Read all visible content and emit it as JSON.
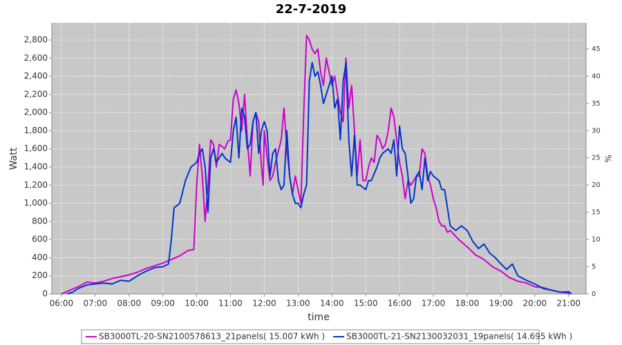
{
  "chart_data": {
    "type": "line",
    "title": "22-7-2019",
    "x_label": "time",
    "y_label": "Watt",
    "y2_label": "%",
    "xlim": [
      "05:43",
      "21:31"
    ],
    "xticks": [
      "06:00",
      "07:00",
      "08:00",
      "09:00",
      "10:00",
      "11:00",
      "12:00",
      "13:00",
      "14:00",
      "15:00",
      "16:00",
      "17:00",
      "18:00",
      "19:00",
      "20:00",
      "21:00"
    ],
    "ylim": [
      0,
      2990
    ],
    "yticks": [
      0,
      200,
      400,
      600,
      800,
      {
        "value": 1000,
        "label": "1,000"
      },
      {
        "value": 1200,
        "label": "1,200"
      },
      {
        "value": 1400,
        "label": "1,400"
      },
      {
        "value": 1600,
        "label": "1,600"
      },
      {
        "value": 1800,
        "label": "1,800"
      },
      {
        "value": 2000,
        "label": "2,000"
      },
      {
        "value": 2200,
        "label": "2,200"
      },
      {
        "value": 2400,
        "label": "2,400"
      },
      {
        "value": 2600,
        "label": "2,600"
      },
      {
        "value": 2800,
        "label": "2,800"
      }
    ],
    "y2lim": [
      0,
      49.8
    ],
    "y2ticks": [
      0,
      5,
      10,
      15,
      20,
      25,
      30,
      35,
      40,
      45
    ],
    "grid": true,
    "legend": "bottom",
    "series": [
      {
        "name": "SB3000TL-20-SN2100578613_21panels( 15.007 kWh )",
        "color": "#cc00cc",
        "x": [
          "06:00",
          "06:15",
          "06:30",
          "06:45",
          "07:00",
          "07:15",
          "07:30",
          "07:45",
          "08:00",
          "08:15",
          "08:30",
          "08:45",
          "09:00",
          "09:15",
          "09:30",
          "09:45",
          "09:55",
          "10:00",
          "10:05",
          "10:10",
          "10:15",
          "10:20",
          "10:25",
          "10:30",
          "10:35",
          "10:40",
          "10:50",
          "10:55",
          "11:00",
          "11:05",
          "11:10",
          "11:15",
          "11:20",
          "11:25",
          "11:30",
          "11:35",
          "11:40",
          "11:45",
          "11:50",
          "11:55",
          "11:58",
          "12:00",
          "12:05",
          "12:10",
          "12:15",
          "12:20",
          "12:30",
          "12:35",
          "12:40",
          "12:45",
          "12:50",
          "12:55",
          "13:00",
          "13:05",
          "13:10",
          "13:15",
          "13:20",
          "13:25",
          "13:30",
          "13:35",
          "13:40",
          "13:45",
          "13:50",
          "13:55",
          "14:00",
          "14:05",
          "14:10",
          "14:15",
          "14:20",
          "14:25",
          "14:30",
          "14:35",
          "14:40",
          "14:45",
          "14:50",
          "14:55",
          "15:00",
          "15:05",
          "15:10",
          "15:15",
          "15:20",
          "15:25",
          "15:30",
          "15:35",
          "15:40",
          "15:45",
          "15:50",
          "15:55",
          "16:00",
          "16:05",
          "16:10",
          "16:15",
          "16:20",
          "16:25",
          "16:30",
          "16:35",
          "16:40",
          "16:45",
          "16:50",
          "16:55",
          "17:00",
          "17:05",
          "17:10",
          "17:15",
          "17:20",
          "17:25",
          "17:30",
          "17:45",
          "18:00",
          "18:15",
          "18:30",
          "18:45",
          "19:00",
          "19:15",
          "19:30",
          "19:45",
          "20:00",
          "20:15",
          "20:30",
          "20:45",
          "21:00",
          "21:05"
        ],
        "values": [
          0,
          40,
          80,
          130,
          120,
          140,
          170,
          190,
          210,
          240,
          280,
          310,
          340,
          380,
          420,
          480,
          490,
          1200,
          1650,
          1300,
          800,
          1200,
          1700,
          1650,
          1400,
          1650,
          1600,
          1680,
          1700,
          2150,
          2250,
          2100,
          1800,
          2200,
          1700,
          1300,
          1900,
          2000,
          1900,
          1400,
          1200,
          1800,
          1500,
          1250,
          1300,
          1450,
          1700,
          2050,
          1600,
          1300,
          1100,
          1300,
          1150,
          1000,
          2000,
          2850,
          2800,
          2700,
          2650,
          2700,
          2450,
          2300,
          2600,
          2450,
          2300,
          2400,
          2200,
          2000,
          1900,
          2600,
          2050,
          2300,
          1800,
          1300,
          1700,
          1250,
          1250,
          1400,
          1500,
          1450,
          1750,
          1700,
          1600,
          1650,
          1800,
          2050,
          1950,
          1700,
          1450,
          1300,
          1050,
          1250,
          1200,
          1250,
          1300,
          1300,
          1600,
          1550,
          1300,
          1200,
          1050,
          950,
          800,
          750,
          750,
          680,
          700,
          600,
          520,
          430,
          380,
          300,
          250,
          180,
          140,
          120,
          80,
          70,
          40,
          20,
          10,
          0
        ]
      },
      {
        "name": "SB3000TL-21-SN2130032031_19panels( 14.695 kWh )",
        "color": "#0033cc",
        "x": [
          "06:10",
          "06:20",
          "06:30",
          "06:45",
          "07:00",
          "07:15",
          "07:30",
          "07:45",
          "08:00",
          "08:15",
          "08:30",
          "08:45",
          "09:00",
          "09:10",
          "09:15",
          "09:20",
          "09:30",
          "09:40",
          "09:50",
          "10:00",
          "10:05",
          "10:10",
          "10:15",
          "10:20",
          "10:25",
          "10:30",
          "10:35",
          "10:45",
          "10:50",
          "11:00",
          "11:05",
          "11:10",
          "11:15",
          "11:20",
          "11:25",
          "11:30",
          "11:35",
          "11:40",
          "11:45",
          "11:50",
          "11:55",
          "12:00",
          "12:05",
          "12:10",
          "12:15",
          "12:20",
          "12:25",
          "12:30",
          "12:35",
          "12:40",
          "12:45",
          "12:50",
          "12:55",
          "13:00",
          "13:05",
          "13:10",
          "13:15",
          "13:20",
          "13:25",
          "13:30",
          "13:35",
          "13:40",
          "13:45",
          "13:50",
          "13:55",
          "14:00",
          "14:05",
          "14:10",
          "14:15",
          "14:20",
          "14:25",
          "14:30",
          "14:35",
          "14:40",
          "14:45",
          "14:50",
          "15:00",
          "15:05",
          "15:10",
          "15:20",
          "15:25",
          "15:30",
          "15:40",
          "15:45",
          "15:50",
          "15:55",
          "16:00",
          "16:05",
          "16:10",
          "16:15",
          "16:20",
          "16:25",
          "16:30",
          "16:35",
          "16:40",
          "16:45",
          "16:50",
          "16:55",
          "17:00",
          "17:10",
          "17:15",
          "17:20",
          "17:25",
          "17:30",
          "17:40",
          "17:50",
          "18:00",
          "18:10",
          "18:20",
          "18:30",
          "18:40",
          "18:50",
          "19:00",
          "19:10",
          "19:20",
          "19:30",
          "19:45",
          "20:00",
          "20:15",
          "20:30",
          "20:45",
          "21:00",
          "21:05"
        ],
        "values": [
          0,
          20,
          60,
          100,
          110,
          120,
          110,
          150,
          140,
          200,
          250,
          290,
          300,
          330,
          600,
          950,
          1000,
          1250,
          1400,
          1450,
          1550,
          1600,
          1400,
          900,
          1500,
          1600,
          1450,
          1550,
          1500,
          1450,
          1800,
          1950,
          1500,
          2050,
          1950,
          1600,
          1650,
          1900,
          2000,
          1550,
          1800,
          1900,
          1800,
          1300,
          1550,
          1600,
          1250,
          1150,
          1200,
          1800,
          1300,
          1100,
          1000,
          1000,
          950,
          1100,
          1200,
          2350,
          2550,
          2400,
          2450,
          2300,
          2100,
          2200,
          2300,
          2400,
          2050,
          2150,
          1700,
          2350,
          2550,
          1700,
          1300,
          1750,
          1200,
          1200,
          1150,
          1250,
          1250,
          1400,
          1500,
          1550,
          1600,
          1550,
          1700,
          1300,
          1850,
          1600,
          1550,
          1300,
          1000,
          1050,
          1300,
          1350,
          1150,
          1500,
          1250,
          1350,
          1300,
          1250,
          1150,
          1150,
          950,
          750,
          700,
          750,
          700,
          580,
          500,
          550,
          450,
          400,
          330,
          270,
          330,
          200,
          150,
          110,
          60,
          40,
          20,
          25,
          0
        ]
      }
    ]
  }
}
